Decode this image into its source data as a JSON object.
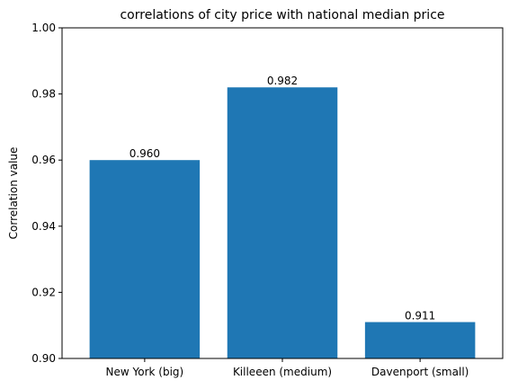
{
  "chart_data": {
    "type": "bar",
    "title": "correlations of city price with national median price",
    "xlabel": "",
    "ylabel": "Correlation value",
    "categories": [
      "New York (big)",
      "Killeeen (medium)",
      "Davenport (small)"
    ],
    "values": [
      0.96,
      0.982,
      0.911
    ],
    "value_labels": [
      "0.960",
      "0.982",
      "0.911"
    ],
    "ylim": [
      0.9,
      1.0
    ],
    "yticks": [
      0.9,
      0.92,
      0.94,
      0.96,
      0.98,
      1.0
    ],
    "ytick_labels": [
      "0.90",
      "0.92",
      "0.94",
      "0.96",
      "0.98",
      "1.00"
    ],
    "bar_color": "#1f77b4",
    "grid": false,
    "legend": false
  }
}
